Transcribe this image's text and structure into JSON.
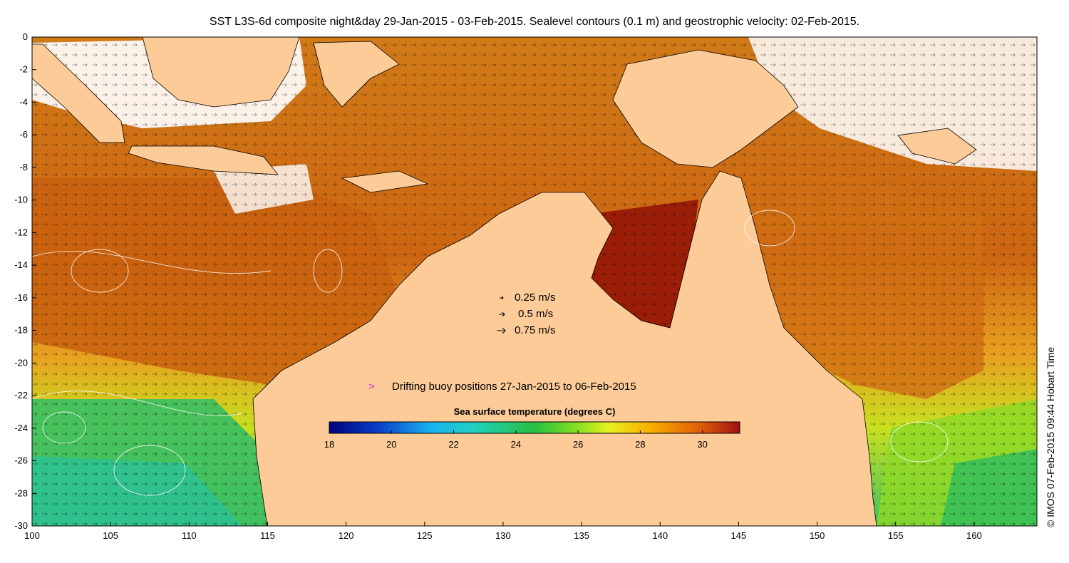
{
  "title": "SST L3S-6d composite night&day 29-Jan-2015 - 03-Feb-2015. Sealevel contours (0.1 m) and geostrophic velocity: 02-Feb-2015.",
  "credit": "© IMOS 07-Feb-2015 09:44 Hobart Time",
  "axes": {
    "x_ticks": [
      100,
      105,
      110,
      115,
      120,
      125,
      130,
      135,
      140,
      145,
      150,
      155,
      160
    ],
    "y_ticks": [
      0,
      -2,
      -4,
      -6,
      -8,
      -10,
      -12,
      -14,
      -16,
      -18,
      -20,
      -22,
      -24,
      -26,
      -28,
      -30
    ],
    "xlim": [
      100,
      164
    ],
    "ylim": [
      -30,
      0
    ]
  },
  "velocity_legend": [
    {
      "label": "0.25 m/s"
    },
    {
      "label": "0.5 m/s"
    },
    {
      "label": "0.75 m/s"
    }
  ],
  "buoy_legend": {
    "marker": ">",
    "label": "Drifting buoy positions 27-Jan-2015 to 06-Feb-2015",
    "color": "#e020e0"
  },
  "colorbar": {
    "title": "Sea surface temperature (degrees C)",
    "min": 18,
    "max": 31.2,
    "ticks": [
      18,
      20,
      22,
      24,
      26,
      28,
      30
    ]
  },
  "colors": {
    "land": "#fdcb98",
    "warm": "#c8500e",
    "hot": "#9a1d08",
    "mid": "#e8a020",
    "cool": "#b8e020",
    "cold": "#38c058",
    "cloud": "#ffffff"
  }
}
